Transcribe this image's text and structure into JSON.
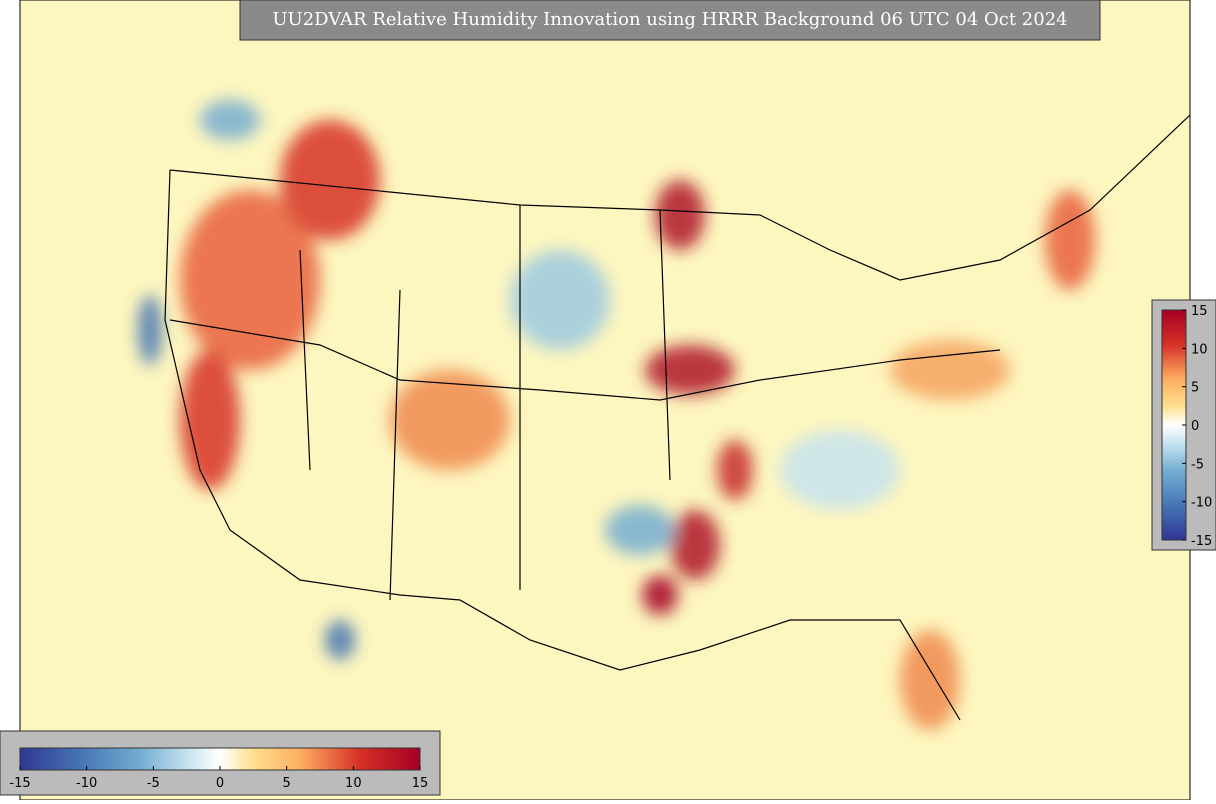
{
  "title": "UU2DVAR Relative Humidity Innovation using HRRR Background 06 UTC 04 Oct 2024",
  "colorbars": [
    {
      "orientation": "horizontal",
      "ticks": [
        -15,
        -10,
        -5,
        0,
        5,
        10,
        15
      ]
    },
    {
      "orientation": "vertical",
      "ticks": [
        15,
        10,
        5,
        0,
        -5,
        -10,
        -15
      ]
    }
  ]
}
